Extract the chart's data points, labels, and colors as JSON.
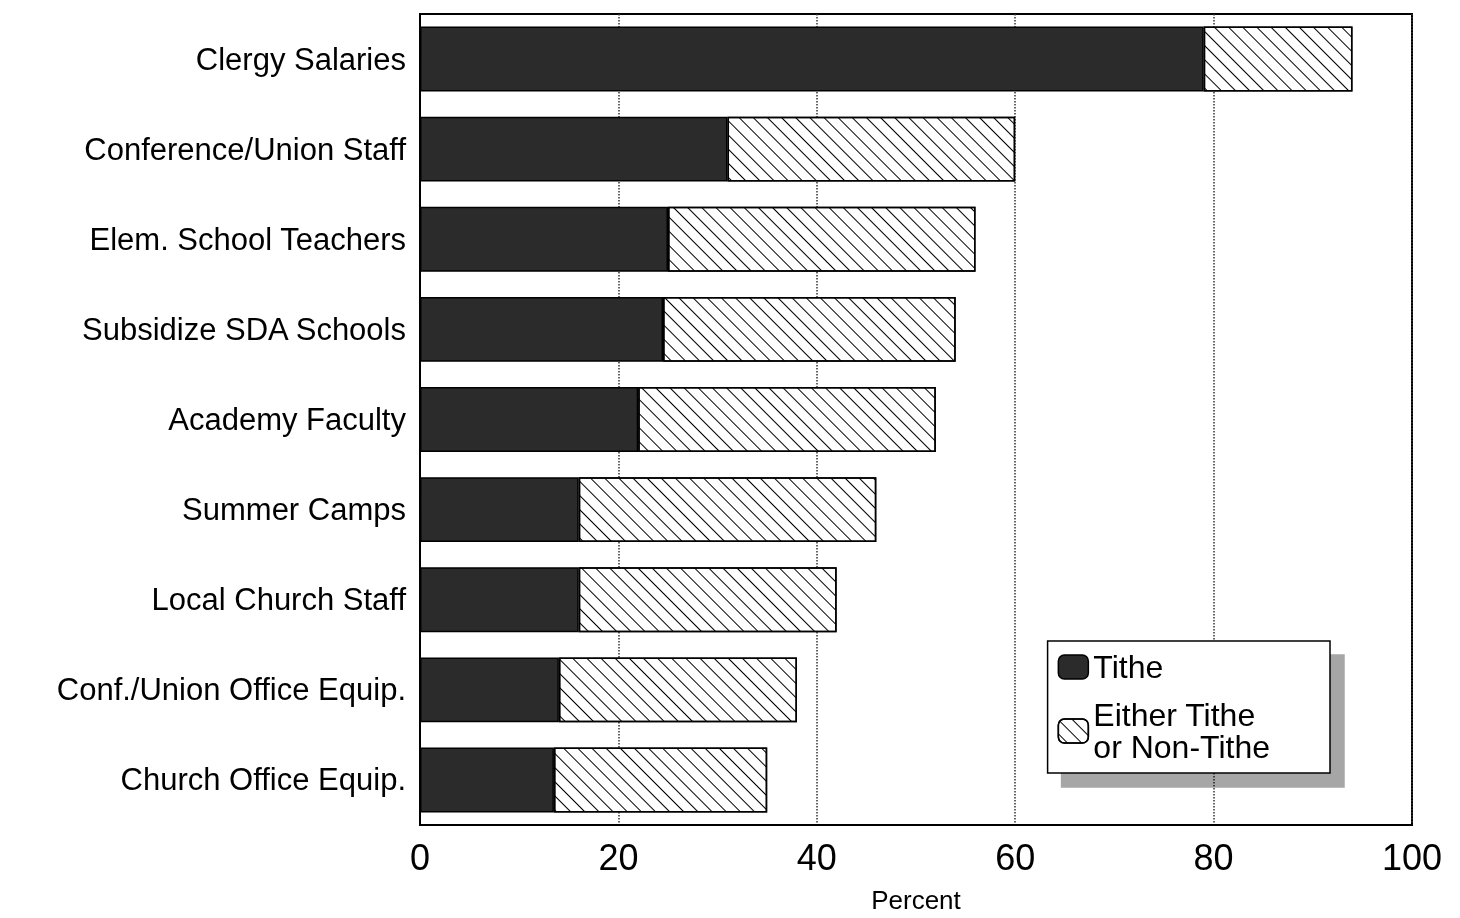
{
  "chart_data": {
    "type": "bar",
    "orientation": "horizontal",
    "stacked": true,
    "xlabel": "Percent",
    "categories": [
      "Clergy Salaries",
      "Conference/Union Staff",
      "Elem. School Teachers",
      "Subsidize SDA Schools",
      "Academy Faculty",
      "Summer Camps",
      "Local Church Staff",
      "Conf./Union Office Equip.",
      "Church Office Equip."
    ],
    "series": [
      {
        "name": "Tithe",
        "color": "#2b2b2b",
        "values": [
          79,
          31,
          25,
          24.5,
          22,
          16,
          16,
          14,
          13.5
        ]
      },
      {
        "name": "Either Tithe or Non-Tithe",
        "color": "#ffffff",
        "values": [
          15,
          29,
          31,
          29.5,
          30,
          30,
          26,
          24,
          21.5
        ]
      }
    ],
    "xlim": [
      0,
      100
    ],
    "xticks": [
      0,
      20,
      40,
      60,
      80,
      100
    ],
    "grid": "x",
    "legend": "bottom right"
  }
}
